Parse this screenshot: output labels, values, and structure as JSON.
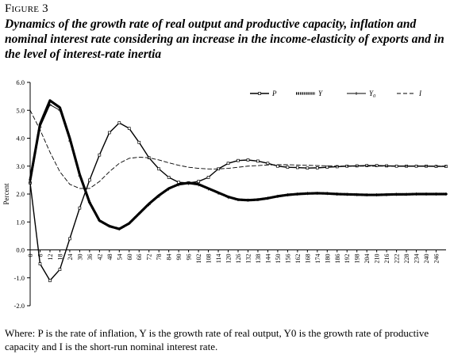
{
  "figure": {
    "label": "Figure 3",
    "title": "Dynamics of the growth rate of real output and productive capacity, inflation and nominal interest rate considering an increase in the income-elasticity of exports and in the level of interest-rate inertia",
    "note": "Where: P is the rate of inflation, Y is the growth rate of real output, Y0 is the growth rate of productive capacity and I is the short-run nominal interest rate."
  },
  "chart_data": {
    "type": "line",
    "ylabel": "Percent",
    "xlabel": "",
    "ylim": [
      -2.0,
      6.0
    ],
    "yticks": [
      "-2.0",
      "-1.0",
      "0.0",
      "1.0",
      "2.0",
      "3.0",
      "4.0",
      "5.0",
      "6.0"
    ],
    "x_ticks": [
      0,
      6,
      12,
      18,
      24,
      30,
      36,
      42,
      48,
      54,
      60,
      66,
      72,
      78,
      84,
      90,
      96,
      102,
      108,
      114,
      120,
      126,
      132,
      138,
      144,
      150,
      156,
      162,
      168,
      174,
      180,
      186,
      192,
      198,
      204,
      210,
      216,
      222,
      228,
      234,
      240,
      246
    ],
    "xlim": [
      0,
      252
    ],
    "grid": false,
    "legend_position": "top-right",
    "x": [
      0,
      6,
      12,
      18,
      24,
      30,
      36,
      42,
      48,
      54,
      60,
      66,
      72,
      78,
      84,
      90,
      96,
      102,
      108,
      114,
      120,
      126,
      132,
      138,
      144,
      150,
      156,
      162,
      168,
      174,
      180,
      186,
      192,
      198,
      204,
      210,
      216,
      222,
      228,
      234,
      240,
      246,
      252
    ],
    "series": [
      {
        "name": "P",
        "style": "line-square",
        "values": [
          2.4,
          -0.5,
          -1.1,
          -0.7,
          0.4,
          1.5,
          2.5,
          3.4,
          4.2,
          4.55,
          4.35,
          3.85,
          3.3,
          2.9,
          2.6,
          2.42,
          2.4,
          2.45,
          2.6,
          2.9,
          3.1,
          3.2,
          3.22,
          3.18,
          3.1,
          3.0,
          2.96,
          2.95,
          2.93,
          2.94,
          2.96,
          2.98,
          3.0,
          3.01,
          3.02,
          3.02,
          3.01,
          3.0,
          3.0,
          3.0,
          3.0,
          2.99,
          2.99
        ]
      },
      {
        "name": "Y",
        "style": "dotted-bold",
        "values": [
          2.5,
          4.5,
          5.35,
          5.1,
          4.0,
          2.7,
          1.7,
          1.05,
          0.85,
          0.75,
          0.95,
          1.3,
          1.65,
          1.95,
          2.2,
          2.35,
          2.4,
          2.35,
          2.2,
          2.05,
          1.9,
          1.8,
          1.78,
          1.8,
          1.85,
          1.92,
          1.97,
          2.0,
          2.02,
          2.03,
          2.02,
          2.0,
          1.99,
          1.98,
          1.97,
          1.97,
          1.98,
          1.99,
          1.99,
          2.0,
          2.0,
          2.0,
          2.0
        ]
      },
      {
        "name": "Y0",
        "style": "line-plus",
        "values": [
          2.4,
          4.4,
          5.2,
          5.0,
          3.9,
          2.65,
          1.7,
          1.05,
          0.85,
          0.75,
          0.95,
          1.3,
          1.62,
          1.92,
          2.18,
          2.33,
          2.38,
          2.33,
          2.18,
          2.03,
          1.88,
          1.8,
          1.78,
          1.8,
          1.85,
          1.92,
          1.97,
          2.0,
          2.02,
          2.03,
          2.02,
          2.0,
          1.99,
          1.98,
          1.97,
          1.97,
          1.98,
          1.99,
          1.99,
          2.0,
          2.0,
          2.0,
          2.0
        ]
      },
      {
        "name": "I",
        "style": "dashed",
        "values": [
          5.0,
          4.3,
          3.5,
          2.8,
          2.35,
          2.2,
          2.2,
          2.45,
          2.8,
          3.1,
          3.28,
          3.32,
          3.3,
          3.22,
          3.12,
          3.03,
          2.96,
          2.92,
          2.9,
          2.9,
          2.92,
          2.96,
          3.0,
          3.02,
          3.04,
          3.05,
          3.05,
          3.04,
          3.03,
          3.02,
          3.01,
          3.0,
          3.0,
          3.0,
          3.0,
          3.0,
          3.0,
          3.0,
          3.0,
          3.0,
          3.0,
          3.0,
          3.0
        ]
      }
    ]
  }
}
